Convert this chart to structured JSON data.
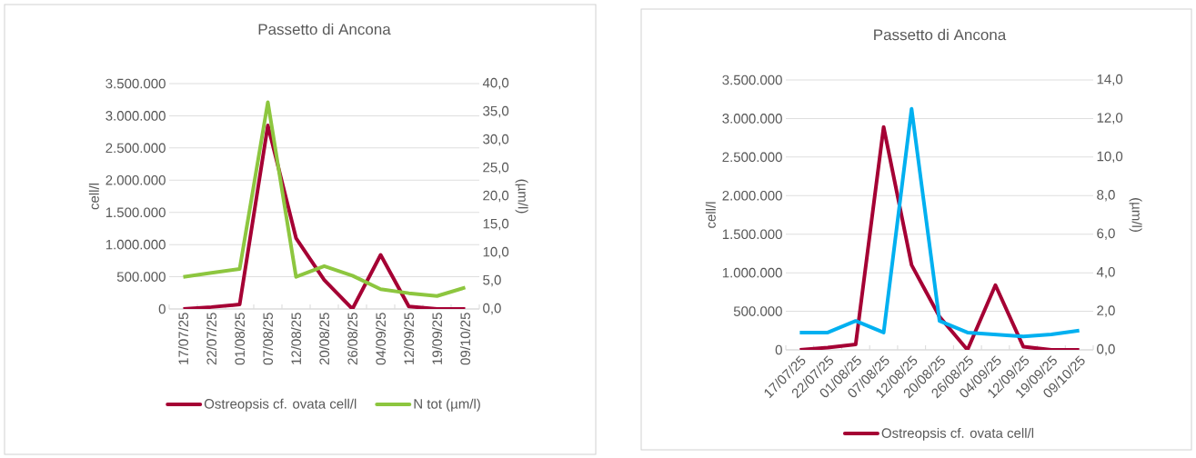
{
  "chart_data": [
    {
      "type": "line",
      "title": "Passetto di Ancona",
      "ylabel": "cell/l",
      "y2label": "(µm/l)",
      "categories": [
        "17/07/25",
        "22/07/25",
        "01/08/25",
        "07/08/25",
        "12/08/25",
        "20/08/25",
        "26/08/25",
        "04/09/25",
        "12/09/25",
        "19/09/25",
        "09/10/25"
      ],
      "series": [
        {
          "name": "Ostreopsis cf. ovata cell/l",
          "color": "#a50034",
          "values": [
            0,
            30000,
            70000,
            2850000,
            1100000,
            450000,
            0,
            840000,
            40000,
            0,
            0
          ]
        },
        {
          "name": "N tot (µm/l)",
          "color": "#8dc63f",
          "axis": "y2",
          "values": [
            5.7,
            6.4,
            7.1,
            36.7,
            5.7,
            7.6,
            5.9,
            3.5,
            2.8,
            2.3,
            3.8
          ]
        }
      ],
      "ylim": [
        0,
        3500000
      ],
      "yticks": [
        0,
        {
          "value": 500000,
          "label": "500.000"
        },
        {
          "value": 1000000,
          "label": "1.000.000"
        },
        {
          "value": 1500000,
          "label": "1.500.000"
        },
        {
          "value": 2000000,
          "label": "2.000.000"
        },
        {
          "value": 2500000,
          "label": "2.500.000"
        },
        {
          "value": 3000000,
          "label": "3.000.000"
        },
        {
          "value": 3500000,
          "label": "3.500.000"
        }
      ],
      "y2lim": [
        0,
        40
      ],
      "y2ticks": [
        {
          "value": 0,
          "label": "0,0"
        },
        {
          "value": 5,
          "label": "5,0"
        },
        {
          "value": 10,
          "label": "10,0"
        },
        {
          "value": 15,
          "label": "15,0"
        },
        {
          "value": 20,
          "label": "20,0"
        },
        {
          "value": 25,
          "label": "25,0"
        },
        {
          "value": 30,
          "label": "30,0"
        },
        {
          "value": 35,
          "label": "35,0"
        },
        {
          "value": 40,
          "label": "40,0"
        }
      ],
      "grid": "y",
      "legend": "bottom",
      "marker": "none",
      "line_style": "solid"
    },
    {
      "type": "line",
      "title": "Passetto di Ancona",
      "ylabel": "cell/l",
      "y2label": "(µm/l)",
      "categories": [
        "17/07/25",
        "22/07/25",
        "01/08/25",
        "07/08/25",
        "12/08/25",
        "20/08/25",
        "26/08/25",
        "04/09/25",
        "12/09/25",
        "19/09/25",
        "09/10/25"
      ],
      "series": [
        {
          "name": "Ostreopsis cf. ovata cell/l",
          "color": "#a50034",
          "values": [
            0,
            30000,
            70000,
            2890000,
            1100000,
            430000,
            0,
            840000,
            40000,
            0,
            0
          ]
        },
        {
          "color": "#00b0f0",
          "axis": "y2",
          "values": [
            0.9,
            0.9,
            1.5,
            0.9,
            12.5,
            1.5,
            0.9,
            0.8,
            0.7,
            0.8,
            1.0
          ]
        }
      ],
      "ylim": [
        0,
        3500000
      ],
      "yticks": [
        0,
        {
          "value": 500000,
          "label": "500.000"
        },
        {
          "value": 1000000,
          "label": "1.000.000"
        },
        {
          "value": 1500000,
          "label": "1.500.000"
        },
        {
          "value": 2000000,
          "label": "2.000.000"
        },
        {
          "value": 2500000,
          "label": "2.500.000"
        },
        {
          "value": 3000000,
          "label": "3.000.000"
        },
        {
          "value": 3500000,
          "label": "3.500.000"
        }
      ],
      "y2lim": [
        0,
        14
      ],
      "y2ticks": [
        {
          "value": 0,
          "label": "0,0"
        },
        {
          "value": 2,
          "label": "2,0"
        },
        {
          "value": 4,
          "label": "4,0"
        },
        {
          "value": 6,
          "label": "6,0"
        },
        {
          "value": 8,
          "label": "8,0"
        },
        {
          "value": 10,
          "label": "10,0"
        },
        {
          "value": 12,
          "label": "12,0"
        },
        {
          "value": 14,
          "label": "14,0"
        }
      ],
      "grid": "y",
      "legend": "bottom",
      "marker": "none",
      "line_style": "solid"
    }
  ]
}
